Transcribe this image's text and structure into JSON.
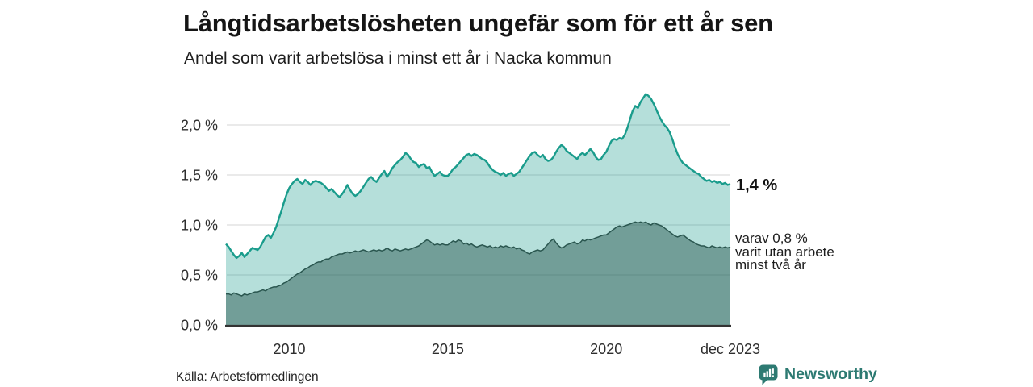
{
  "header": {
    "title": "Långtidsarbetslösheten ungefär som för ett år sen",
    "subtitle": "Andel som varit arbetslösa i minst ett år i Nacka kommun"
  },
  "chart_data": {
    "type": "area",
    "title": "Långtidsarbetslösheten ungefär som för ett år sen",
    "subtitle": "Andel som varit arbetslösa i minst ett år i Nacka kommun",
    "unit": "%",
    "frequency": "monthly",
    "x_start": "jan 2008",
    "x_end": "dec 2023",
    "ylim": [
      0,
      2.4
    ],
    "grid": true,
    "legend_position": "none",
    "yticks": [
      {
        "v": 0.0,
        "label": "0,0 %"
      },
      {
        "v": 0.5,
        "label": "0,5 %"
      },
      {
        "v": 1.0,
        "label": "1,0 %"
      },
      {
        "v": 1.5,
        "label": "1,5 %"
      },
      {
        "v": 2.0,
        "label": "2,0 %"
      }
    ],
    "xticks": [
      {
        "month_index": 24,
        "label": "2010"
      },
      {
        "month_index": 84,
        "label": "2015"
      },
      {
        "month_index": 144,
        "label": "2020"
      },
      {
        "month_index": 191,
        "label": "dec 2023"
      }
    ],
    "series": [
      {
        "name": "Andel arbetslösa minst ett år",
        "latest_value": 1.4,
        "line_color": "#1a9c8c",
        "fill_color": "#1a9c8c",
        "fill_opacity": 0.32,
        "line_width": 2.4,
        "values": [
          0.81,
          0.78,
          0.74,
          0.7,
          0.67,
          0.69,
          0.72,
          0.68,
          0.71,
          0.74,
          0.77,
          0.76,
          0.75,
          0.78,
          0.83,
          0.88,
          0.9,
          0.87,
          0.92,
          0.98,
          1.06,
          1.14,
          1.23,
          1.31,
          1.37,
          1.41,
          1.44,
          1.46,
          1.43,
          1.41,
          1.45,
          1.43,
          1.4,
          1.43,
          1.44,
          1.43,
          1.42,
          1.4,
          1.37,
          1.34,
          1.36,
          1.33,
          1.3,
          1.28,
          1.31,
          1.35,
          1.4,
          1.35,
          1.31,
          1.29,
          1.31,
          1.34,
          1.38,
          1.42,
          1.46,
          1.48,
          1.45,
          1.43,
          1.47,
          1.51,
          1.54,
          1.48,
          1.52,
          1.57,
          1.6,
          1.63,
          1.65,
          1.68,
          1.72,
          1.7,
          1.66,
          1.63,
          1.62,
          1.58,
          1.6,
          1.61,
          1.57,
          1.58,
          1.53,
          1.49,
          1.51,
          1.53,
          1.5,
          1.49,
          1.49,
          1.52,
          1.56,
          1.58,
          1.61,
          1.64,
          1.67,
          1.7,
          1.71,
          1.69,
          1.71,
          1.7,
          1.68,
          1.66,
          1.65,
          1.62,
          1.58,
          1.55,
          1.53,
          1.52,
          1.5,
          1.52,
          1.49,
          1.51,
          1.52,
          1.49,
          1.51,
          1.53,
          1.57,
          1.61,
          1.65,
          1.69,
          1.72,
          1.73,
          1.7,
          1.68,
          1.7,
          1.66,
          1.64,
          1.65,
          1.68,
          1.73,
          1.77,
          1.8,
          1.78,
          1.74,
          1.72,
          1.7,
          1.68,
          1.66,
          1.7,
          1.72,
          1.7,
          1.73,
          1.76,
          1.73,
          1.68,
          1.65,
          1.66,
          1.7,
          1.73,
          1.79,
          1.84,
          1.86,
          1.85,
          1.87,
          1.86,
          1.9,
          1.97,
          2.06,
          2.14,
          2.19,
          2.17,
          2.23,
          2.27,
          2.31,
          2.29,
          2.26,
          2.21,
          2.15,
          2.09,
          2.04,
          2.0,
          1.97,
          1.93,
          1.86,
          1.78,
          1.71,
          1.66,
          1.62,
          1.6,
          1.58,
          1.56,
          1.54,
          1.52,
          1.51,
          1.48,
          1.46,
          1.44,
          1.45,
          1.43,
          1.44,
          1.42,
          1.43,
          1.41,
          1.42,
          1.4,
          1.41
        ]
      },
      {
        "name": "varav varit utan arbete minst två år",
        "latest_value": 0.8,
        "line_color": "#2a564f",
        "fill_color": "#16463f",
        "fill_opacity": 0.42,
        "line_width": 1.5,
        "values": [
          0.31,
          0.31,
          0.3,
          0.32,
          0.31,
          0.3,
          0.29,
          0.31,
          0.3,
          0.31,
          0.32,
          0.33,
          0.33,
          0.34,
          0.35,
          0.34,
          0.36,
          0.37,
          0.38,
          0.38,
          0.39,
          0.4,
          0.42,
          0.43,
          0.45,
          0.47,
          0.49,
          0.51,
          0.52,
          0.54,
          0.56,
          0.57,
          0.59,
          0.6,
          0.62,
          0.63,
          0.63,
          0.65,
          0.66,
          0.66,
          0.68,
          0.69,
          0.7,
          0.71,
          0.71,
          0.72,
          0.73,
          0.72,
          0.73,
          0.74,
          0.73,
          0.74,
          0.75,
          0.74,
          0.73,
          0.74,
          0.75,
          0.74,
          0.75,
          0.74,
          0.75,
          0.77,
          0.75,
          0.74,
          0.76,
          0.75,
          0.74,
          0.75,
          0.76,
          0.75,
          0.76,
          0.77,
          0.78,
          0.79,
          0.81,
          0.83,
          0.85,
          0.84,
          0.82,
          0.8,
          0.81,
          0.8,
          0.81,
          0.8,
          0.8,
          0.82,
          0.84,
          0.83,
          0.85,
          0.84,
          0.81,
          0.82,
          0.8,
          0.81,
          0.79,
          0.78,
          0.79,
          0.8,
          0.79,
          0.78,
          0.79,
          0.77,
          0.78,
          0.77,
          0.79,
          0.78,
          0.79,
          0.78,
          0.77,
          0.78,
          0.76,
          0.77,
          0.75,
          0.74,
          0.72,
          0.71,
          0.73,
          0.74,
          0.75,
          0.74,
          0.75,
          0.78,
          0.81,
          0.84,
          0.86,
          0.82,
          0.79,
          0.77,
          0.78,
          0.8,
          0.81,
          0.82,
          0.83,
          0.81,
          0.82,
          0.85,
          0.84,
          0.86,
          0.85,
          0.86,
          0.87,
          0.88,
          0.89,
          0.9,
          0.9,
          0.92,
          0.94,
          0.96,
          0.98,
          0.99,
          0.98,
          0.99,
          1.0,
          1.01,
          1.02,
          1.03,
          1.02,
          1.03,
          1.02,
          1.03,
          1.01,
          1.0,
          1.02,
          1.01,
          1.0,
          0.99,
          0.97,
          0.95,
          0.93,
          0.91,
          0.89,
          0.88,
          0.89,
          0.9,
          0.88,
          0.86,
          0.84,
          0.83,
          0.81,
          0.8,
          0.79,
          0.79,
          0.78,
          0.77,
          0.79,
          0.78,
          0.77,
          0.78,
          0.77,
          0.78,
          0.77,
          0.78
        ]
      }
    ]
  },
  "annotations": {
    "latest_total": "1,4 %",
    "secondary": {
      "lines": [
        "varav 0,8 %",
        "varit utan arbete",
        "minst två år"
      ]
    }
  },
  "footer": {
    "source": "Källa: Arbetsförmedlingen",
    "logo_text": "Newsworthy"
  },
  "colors": {
    "accent_teal": "#1a9c8c",
    "dark_series": "#2a564f",
    "logo_teal": "#2d7a72",
    "grid": "#e3e3e3",
    "axis": "#333333"
  }
}
